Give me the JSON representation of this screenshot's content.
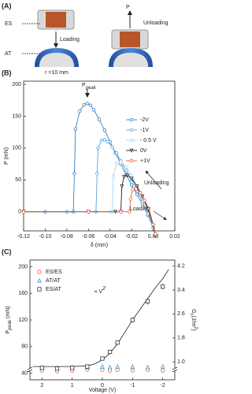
{
  "panel_a": {
    "label": "(A)",
    "es": "ES",
    "at": "AT",
    "loading": "Loading",
    "force": "P",
    "unloading": "Unloading",
    "radius": "r =10 mm"
  },
  "chart_data": [
    {
      "type": "line",
      "panel_label": "(B)",
      "xlabel": "δ (mm)",
      "ylabel": "P (mN)",
      "xlim": [
        -0.12,
        0.02
      ],
      "xticks": [
        -0.12,
        {
          "value": -0.1,
          "label": "-0.10"
        },
        -0.08,
        -0.06,
        -0.04,
        -0.02,
        {
          "value": 0,
          "label": "0.00"
        },
        0.02
      ],
      "ylim": [
        -30,
        205
      ],
      "yticks": [
        0,
        50,
        100,
        150,
        200
      ],
      "annotations": {
        "peak": "P",
        "peak_sub": "peak",
        "unloading": "Unloading",
        "loading": "Loading"
      },
      "series": [
        {
          "name": "-2V",
          "color": "#3a7fc1",
          "marker": "circle",
          "x": [
            -0.12,
            -0.1,
            -0.08,
            -0.074,
            -0.073,
            -0.072,
            -0.068,
            -0.064,
            -0.061,
            -0.058,
            -0.055,
            -0.05,
            -0.045,
            -0.04,
            -0.035,
            -0.03,
            -0.025,
            -0.02,
            -0.015,
            -0.01,
            -0.005,
            0,
            0.002
          ],
          "values": [
            0,
            0,
            0,
            0,
            60,
            130,
            158,
            168,
            170,
            167,
            160,
            145,
            128,
            110,
            92,
            75,
            58,
            42,
            27,
            12,
            -5,
            -25,
            -38
          ]
        },
        {
          "name": "-1V",
          "color": "#5ba3dc",
          "marker": "circle",
          "x": [
            -0.12,
            -0.08,
            -0.06,
            -0.053,
            -0.052,
            -0.051,
            -0.048,
            -0.045,
            -0.042,
            -0.038,
            -0.034,
            -0.03,
            -0.025,
            -0.02,
            -0.015,
            -0.01,
            -0.005,
            0,
            0.002
          ],
          "values": [
            0,
            0,
            0,
            0,
            60,
            100,
            112,
            113,
            110,
            102,
            92,
            80,
            65,
            50,
            33,
            16,
            -3,
            -25,
            -38
          ]
        },
        {
          "name": "- 0.5 V",
          "color": "#a8d4f0",
          "marker": "circle",
          "x": [
            -0.12,
            -0.06,
            -0.04,
            -0.038,
            -0.037,
            -0.034,
            -0.03,
            -0.025,
            -0.02,
            -0.015,
            -0.01,
            -0.005,
            0,
            0.002
          ],
          "values": [
            0,
            0,
            0,
            0,
            55,
            76,
            78,
            70,
            57,
            40,
            22,
            2,
            -22,
            -38
          ]
        },
        {
          "name": "0V",
          "color": "#222222",
          "marker": "triangle-down",
          "x": [
            -0.12,
            -0.06,
            -0.035,
            -0.03,
            -0.029,
            -0.027,
            -0.024,
            -0.02,
            -0.015,
            -0.01,
            -0.005,
            0,
            0.002
          ],
          "values": [
            0,
            0,
            0,
            0,
            40,
            55,
            57,
            52,
            40,
            24,
            5,
            -22,
            -38
          ]
        },
        {
          "name": "+1V",
          "color": "#e8623a",
          "marker": "circle",
          "x": [
            -0.12,
            -0.06,
            -0.03,
            -0.022,
            -0.021,
            -0.019,
            -0.016,
            -0.012,
            -0.008,
            -0.004,
            0,
            0.002
          ],
          "values": [
            0,
            0,
            0,
            0,
            20,
            35,
            36,
            30,
            18,
            5,
            -20,
            -35
          ]
        }
      ]
    },
    {
      "type": "scatter",
      "panel_label": "(C)",
      "xlabel": "Voltage (V)",
      "ylabel": "P",
      "ylabel_sub": "peak",
      "ylabel_unit": " (mN)",
      "y2label": "G",
      "y2label_sub": "c",
      "y2label_unit": "(J/m",
      "y2label_sup": "2",
      "y2label_end": ")",
      "xlim": [
        2.4,
        -2.4
      ],
      "xticks": [
        2,
        1,
        0,
        -1,
        -2
      ],
      "ylim": [
        30,
        210
      ],
      "yticks": [
        40,
        80,
        120,
        160,
        200
      ],
      "y2lim": [
        0.4,
        4.4
      ],
      "y2ticks": [
        {
          "value": 1,
          "label": "1.0"
        },
        1.8,
        2.6,
        3.4,
        4.2
      ],
      "annotation": "∝ V",
      "annotation_sup": "2",
      "x": [
        2,
        1.5,
        1,
        0.5,
        0,
        -0.25,
        -0.5,
        -1,
        -1.5,
        -2
      ],
      "series": [
        {
          "name": "ES/ES",
          "color": "#e8623a",
          "marker": "circle",
          "values": [
            44,
            43,
            44,
            45,
            45,
            44,
            45,
            44,
            45,
            44
          ]
        },
        {
          "name": "AT/AT",
          "color": "#3a9ad9",
          "marker": "triangle-up",
          "values": [
            48,
            48,
            49,
            49,
            50,
            49,
            50,
            50,
            49,
            50
          ]
        },
        {
          "name": "ES/AT",
          "color": "#333333",
          "marker": "square",
          "values": [
            48,
            47,
            48,
            50,
            62,
            72,
            86,
            120,
            148,
            170
          ],
          "errors": [
            2,
            2,
            2,
            2,
            2,
            3,
            3,
            4,
            5,
            4
          ]
        }
      ],
      "fit": {
        "x": [
          2.3,
          1,
          0.5,
          0.25,
          0,
          -0.25,
          -0.5,
          -0.75,
          -1,
          -1.25,
          -1.5,
          -1.75,
          -2,
          -2.2
        ],
        "values": [
          50,
          50,
          51,
          54,
          60,
          70,
          84,
          102,
          120,
          136,
          152,
          168,
          182,
          196
        ]
      }
    }
  ]
}
